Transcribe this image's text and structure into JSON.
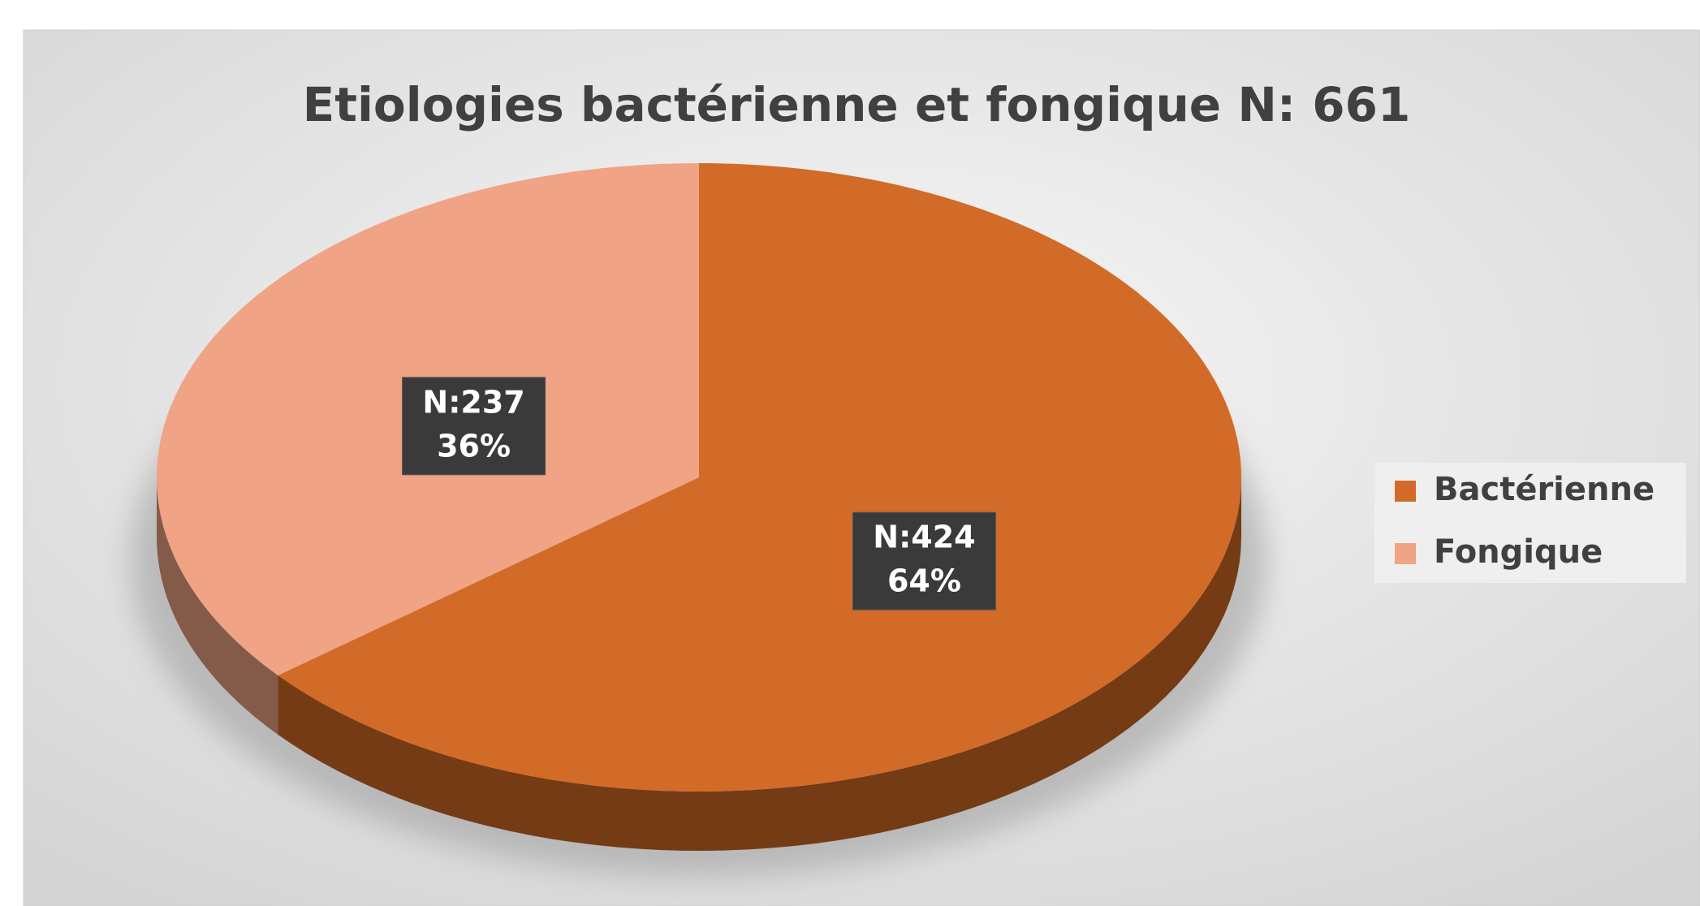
{
  "chart_data": {
    "type": "pie",
    "title": "Etiologies bactérienne et fongique N: 661",
    "categories": [
      "Bactérienne",
      "Fongique"
    ],
    "values": [
      424,
      237
    ],
    "value_labels": [
      "N:424",
      "N:237"
    ],
    "percentages": [
      64,
      36
    ],
    "percentage_labels": [
      "64%",
      "36%"
    ],
    "colors": [
      "#d26b27",
      "#f0a385"
    ],
    "legend": "right"
  }
}
